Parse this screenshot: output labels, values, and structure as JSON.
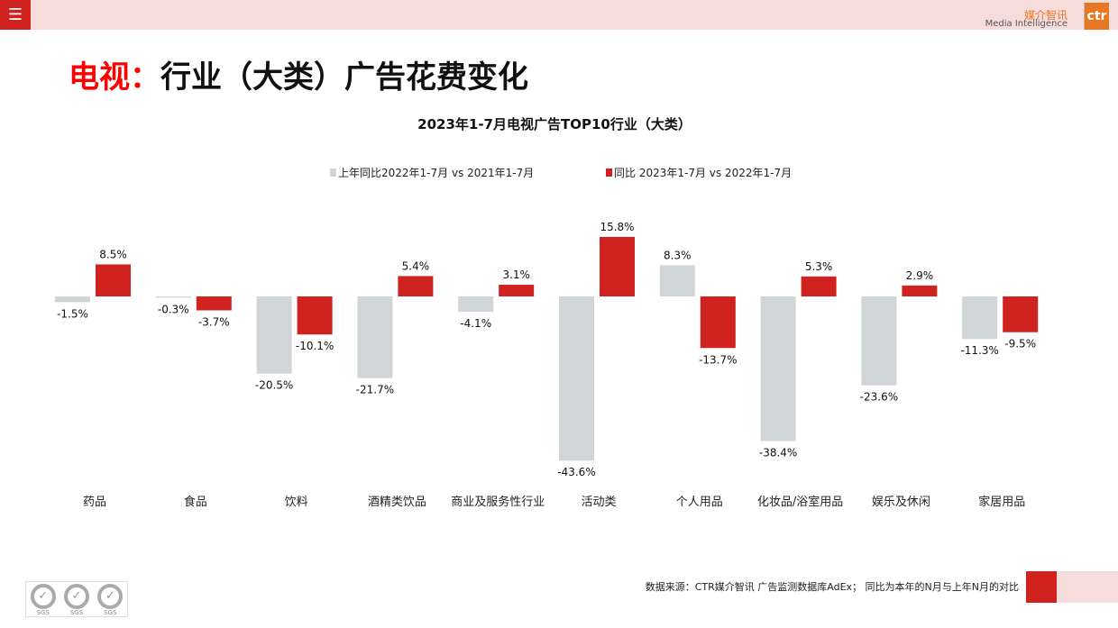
{
  "header": {
    "menu_icon": "hamburger-icon",
    "logo_cn": "媒介智讯",
    "logo_en": "Media Intelligence",
    "logo_mark": "ctr"
  },
  "page_title": {
    "prefix": "电视：",
    "main": "行业（大类）广告花费变化"
  },
  "colors": {
    "prev": "#d0d5d8",
    "curr": "#d0231f",
    "accent": "#d0231f"
  },
  "chart_data": {
    "type": "bar",
    "title": "2023年1-7月电视广告TOP10行业（大类）",
    "legend_position": "top",
    "grid": false,
    "categories": [
      "药品",
      "食品",
      "饮料",
      "酒精类饮品",
      "商业及服务性行业",
      "活动类",
      "个人用品",
      "化妆品/浴室用品",
      "娱乐及休闲",
      "家居用品"
    ],
    "series": [
      {
        "name": "上年同比2022年1-7月 vs 2021年1-7月",
        "values": [
          -1.5,
          -0.3,
          -20.5,
          -21.7,
          -4.1,
          -43.6,
          8.3,
          -38.4,
          -23.6,
          -11.3
        ],
        "labels": [
          "-1.5%",
          "-0.3%",
          "-20.5%",
          "-21.7%",
          "-4.1%",
          "-43.6%",
          "8.3%",
          "-38.4%",
          "-23.6%",
          "-11.3%"
        ]
      },
      {
        "name": "同比 2023年1-7月 vs 2022年1-7月",
        "values": [
          8.5,
          -3.7,
          -10.1,
          5.4,
          3.1,
          15.8,
          -13.7,
          5.3,
          2.9,
          -9.5
        ],
        "labels": [
          "8.5%",
          "-3.7%",
          "-10.1%",
          "5.4%",
          "3.1%",
          "15.8%",
          "-13.7%",
          "5.3%",
          "2.9%",
          "-9.5%"
        ]
      }
    ]
  },
  "footer": {
    "source": "数据来源：CTR媒介智讯 广告监测数据库AdEx； 同比为本年的N月与上年N月的对比",
    "cert_label": "SGS"
  }
}
